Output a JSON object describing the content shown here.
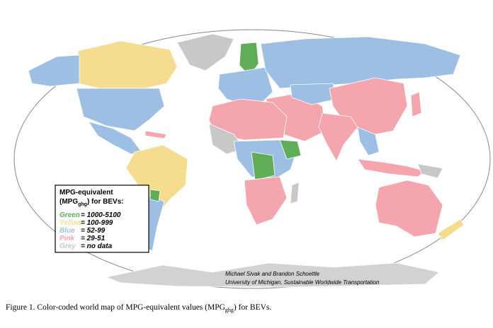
{
  "legend": {
    "title_line1": "MPG-equivalent",
    "title_open": "(MPG",
    "title_sub": "ghg",
    "title_close": ") for BEVs:",
    "items": [
      {
        "label": "Green",
        "range": "= 1000-5100",
        "color": "#5fad56"
      },
      {
        "label": "Yellow",
        "range": "= 100-999",
        "color": "#f5dc8f"
      },
      {
        "label": "Blue",
        "range": "= 52-99",
        "color": "#9dbfe4"
      },
      {
        "label": "Pink",
        "range": "= 29-51",
        "color": "#f4a5ad"
      },
      {
        "label": "Grey",
        "range": "= no data",
        "color": "#c8c8c8"
      }
    ]
  },
  "credits": {
    "line1": "Michael Sivak and Brandon Schoettle",
    "line2": "University of Michigan, Sustainable Worldwide Transportation"
  },
  "caption": {
    "text": "Figure 1.  Color-coded world map of MPG-equivalent values (MPG",
    "sub": "ghg",
    "end": ") for BEVs."
  }
}
